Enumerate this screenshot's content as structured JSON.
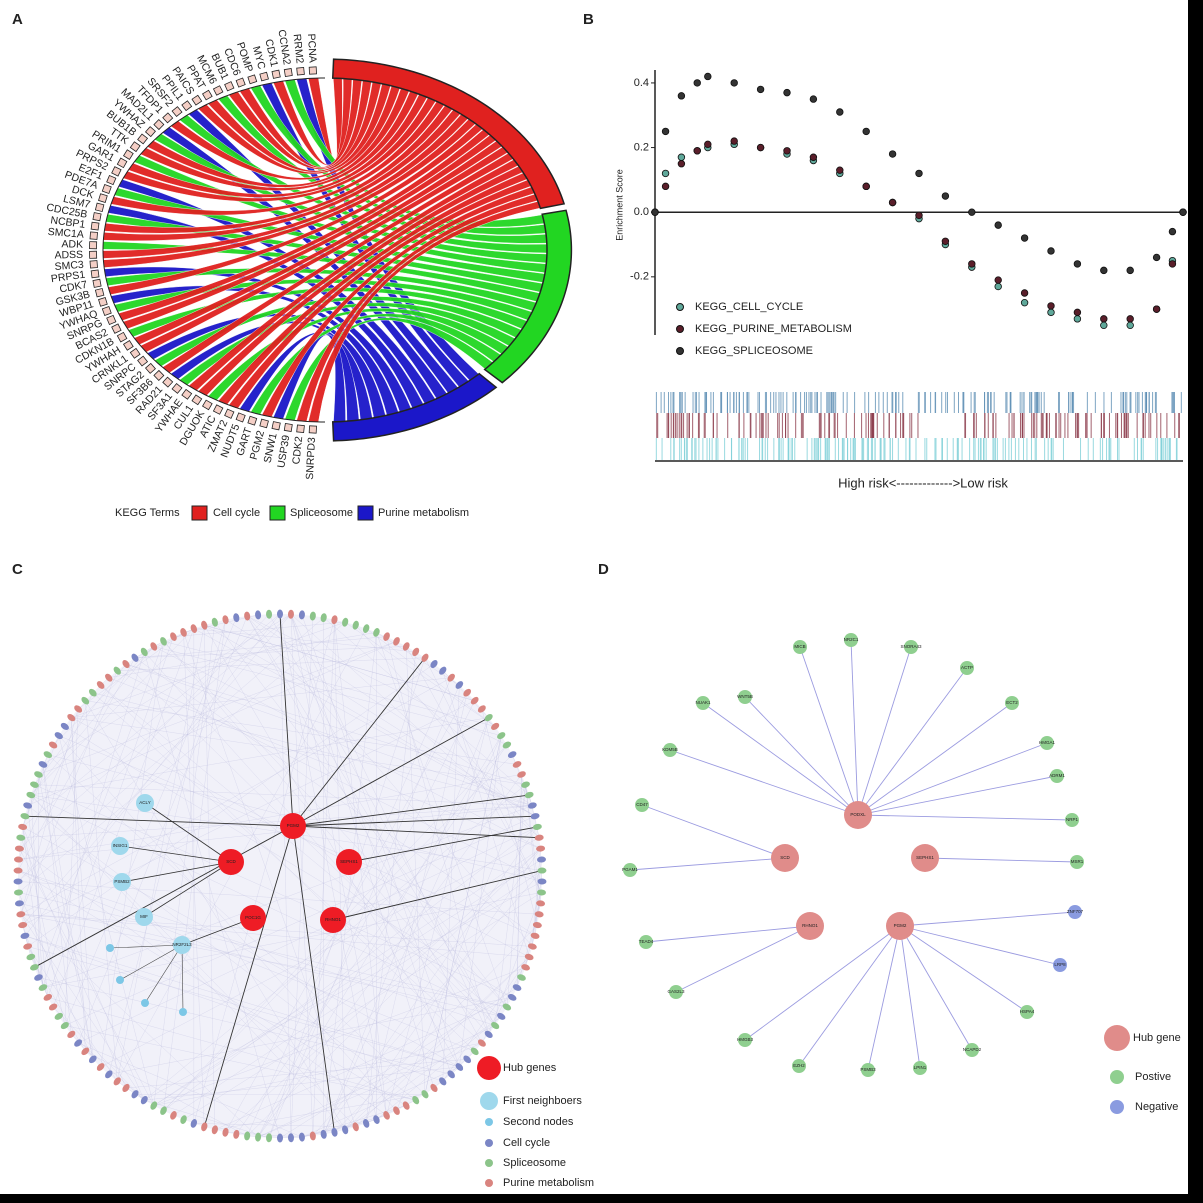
{
  "panel_labels": [
    "A",
    "B",
    "C",
    "D"
  ],
  "panel_a": {
    "genes": [
      "PCNA",
      "RRM2",
      "CCNA2",
      "CDK1",
      "MYC",
      "POMP",
      "CDC6",
      "BUB1",
      "MCM6",
      "PPAT",
      "PAICS",
      "PPIL1",
      "SRSF2",
      "TFDP1",
      "MAD2L1",
      "YWHAZ",
      "BUB1B",
      "TTK",
      "PRIM1",
      "GAR1",
      "PRPS2",
      "E2F1",
      "PDE7A",
      "DCK",
      "LSM7",
      "CDC25B",
      "NCBP1",
      "SMC1A",
      "ADK",
      "ADSS",
      "SMC3",
      "PRPS1",
      "CDK7",
      "GSK3B",
      "WBP11",
      "YWHAQ",
      "SNRPG",
      "BCAS2",
      "CDKN1B",
      "YWHAH",
      "CRNKL1",
      "SNRPC",
      "STAG2",
      "SF3B6",
      "RAD21",
      "SF3A1",
      "YWHAE",
      "CUL1",
      "DGUOK",
      "ATIC",
      "ZMAT2",
      "NUDT5",
      "GART",
      "PGM2",
      "SNW1",
      "USP39",
      "CDK2",
      "SNRPD3"
    ],
    "legend_title": "KEGG Terms",
    "terms": [
      {
        "name": "Cell cycle",
        "color": "#e0211f"
      },
      {
        "name": "Spliceosome",
        "color": "#22d622"
      },
      {
        "name": "Purine metabolism",
        "color": "#1b17c9"
      }
    ]
  },
  "chart_data": {
    "type": "scatter",
    "y_label": "Enrichment Score",
    "x_label": "High risk<------------->Low risk",
    "x": [
      0,
      2,
      5,
      8,
      10,
      15,
      20,
      25,
      30,
      35,
      40,
      45,
      50,
      55,
      60,
      65,
      70,
      75,
      80,
      85,
      90,
      95,
      98,
      100
    ],
    "xlim": [
      0,
      100
    ],
    "ylim": [
      -0.38,
      0.44
    ],
    "yticks": [
      -0.2,
      {
        "value": 0,
        "label": "0.0"
      },
      0.2,
      0.4
    ],
    "series": [
      {
        "name": "KEGG_CELL_CYCLE",
        "color": "#5fa89a",
        "values": [
          0,
          0.12,
          0.17,
          0.19,
          0.2,
          0.21,
          0.2,
          0.18,
          0.16,
          0.12,
          0.08,
          0.03,
          -0.02,
          -0.1,
          -0.17,
          -0.23,
          -0.28,
          -0.31,
          -0.33,
          -0.35,
          -0.35,
          -0.3,
          -0.15,
          0
        ]
      },
      {
        "name": "KEGG_PURINE_METABOLISM",
        "color": "#5a1e2a",
        "values": [
          0,
          0.08,
          0.15,
          0.19,
          0.21,
          0.22,
          0.2,
          0.19,
          0.17,
          0.13,
          0.08,
          0.03,
          -0.01,
          -0.09,
          -0.16,
          -0.21,
          -0.25,
          -0.29,
          -0.31,
          -0.33,
          -0.33,
          -0.3,
          -0.16,
          0
        ]
      },
      {
        "name": "KEGG_SPLICEOSOME",
        "color": "#333333",
        "values": [
          0,
          0.25,
          0.36,
          0.4,
          0.42,
          0.4,
          0.38,
          0.37,
          0.35,
          0.31,
          0.25,
          0.18,
          0.12,
          0.05,
          0,
          -0.04,
          -0.08,
          -0.12,
          -0.16,
          -0.18,
          -0.18,
          -0.14,
          -0.06,
          0
        ]
      }
    ]
  },
  "panel_c": {
    "hubs": [
      {
        "label": "PGM2",
        "targets": []
      },
      {
        "label": "SCD",
        "targets": [
          "ACLY",
          "INSIG1",
          "PSMB2",
          "MIF"
        ]
      },
      {
        "label": "SEPHS1",
        "targets": []
      },
      {
        "label": "POC1G",
        "targets": [
          "NR2F2L3"
        ]
      },
      {
        "label": "RHNO1",
        "targets": []
      }
    ],
    "legend": [
      {
        "text": "Hub genes",
        "color": "#ee1c25"
      },
      {
        "text": "First neighboers",
        "color": "#9fd8ec"
      },
      {
        "text": "Second nodes",
        "color": "#7cc7e6"
      },
      {
        "text": "Cell cycle",
        "color": "#7b86c5"
      },
      {
        "text": "Spliceosome",
        "color": "#8cc48a"
      },
      {
        "text": "Purine metabolism",
        "color": "#d9847f"
      }
    ]
  },
  "panel_d": {
    "hubs": [
      {
        "label": "PODXL",
        "targets": [
          {
            "label": "KDM5B",
            "color": "#8fcf8f"
          },
          {
            "label": "NUAK1",
            "color": "#8fcf8f"
          },
          {
            "label": "WNT5B",
            "color": "#8fcf8f"
          },
          {
            "label": "MICB",
            "color": "#8fcf8f"
          },
          {
            "label": "NR2C1",
            "color": "#8fcf8f"
          },
          {
            "label": "SNORA43",
            "color": "#8fcf8f"
          },
          {
            "label": "ACTP",
            "color": "#8fcf8f"
          },
          {
            "label": "ECT2",
            "color": "#8fcf8f"
          },
          {
            "label": "HMGA1",
            "color": "#8fcf8f"
          },
          {
            "label": "ADRM1",
            "color": "#8fcf8f"
          },
          {
            "label": "NRP1",
            "color": "#8fcf8f"
          }
        ]
      },
      {
        "label": "SCD",
        "targets": [
          {
            "label": "CD47",
            "color": "#8fcf8f"
          },
          {
            "label": "PGAM1",
            "color": "#8fcf8f"
          }
        ]
      },
      {
        "label": "SEPHS1",
        "targets": [
          {
            "label": "MSR1",
            "color": "#8fcf8f"
          }
        ]
      },
      {
        "label": "RHNO1",
        "targets": [
          {
            "label": "TEAD4",
            "color": "#8fcf8f"
          },
          {
            "label": "GAS2L3",
            "color": "#8fcf8f"
          }
        ]
      },
      {
        "label": "PGM2",
        "targets": [
          {
            "label": "ZNF707",
            "color": "#8a9be0"
          },
          {
            "label": "LRP8",
            "color": "#8a9be0"
          },
          {
            "label": "HSPA4",
            "color": "#8fcf8f"
          },
          {
            "label": "NCAPD2",
            "color": "#8fcf8f"
          },
          {
            "label": "LPIN1",
            "color": "#8fcf8f"
          },
          {
            "label": "PSMB3",
            "color": "#8fcf8f"
          },
          {
            "label": "EZH2",
            "color": "#8fcf8f"
          },
          {
            "label": "HMGB3",
            "color": "#8fcf8f"
          }
        ]
      }
    ],
    "hub_color": "#e08c8a",
    "legend": [
      {
        "text": "Hub gene",
        "color": "#e08c8a"
      },
      {
        "text": "Postive",
        "color": "#8fcf8f"
      },
      {
        "text": "Negative",
        "color": "#8a9be0"
      }
    ]
  }
}
